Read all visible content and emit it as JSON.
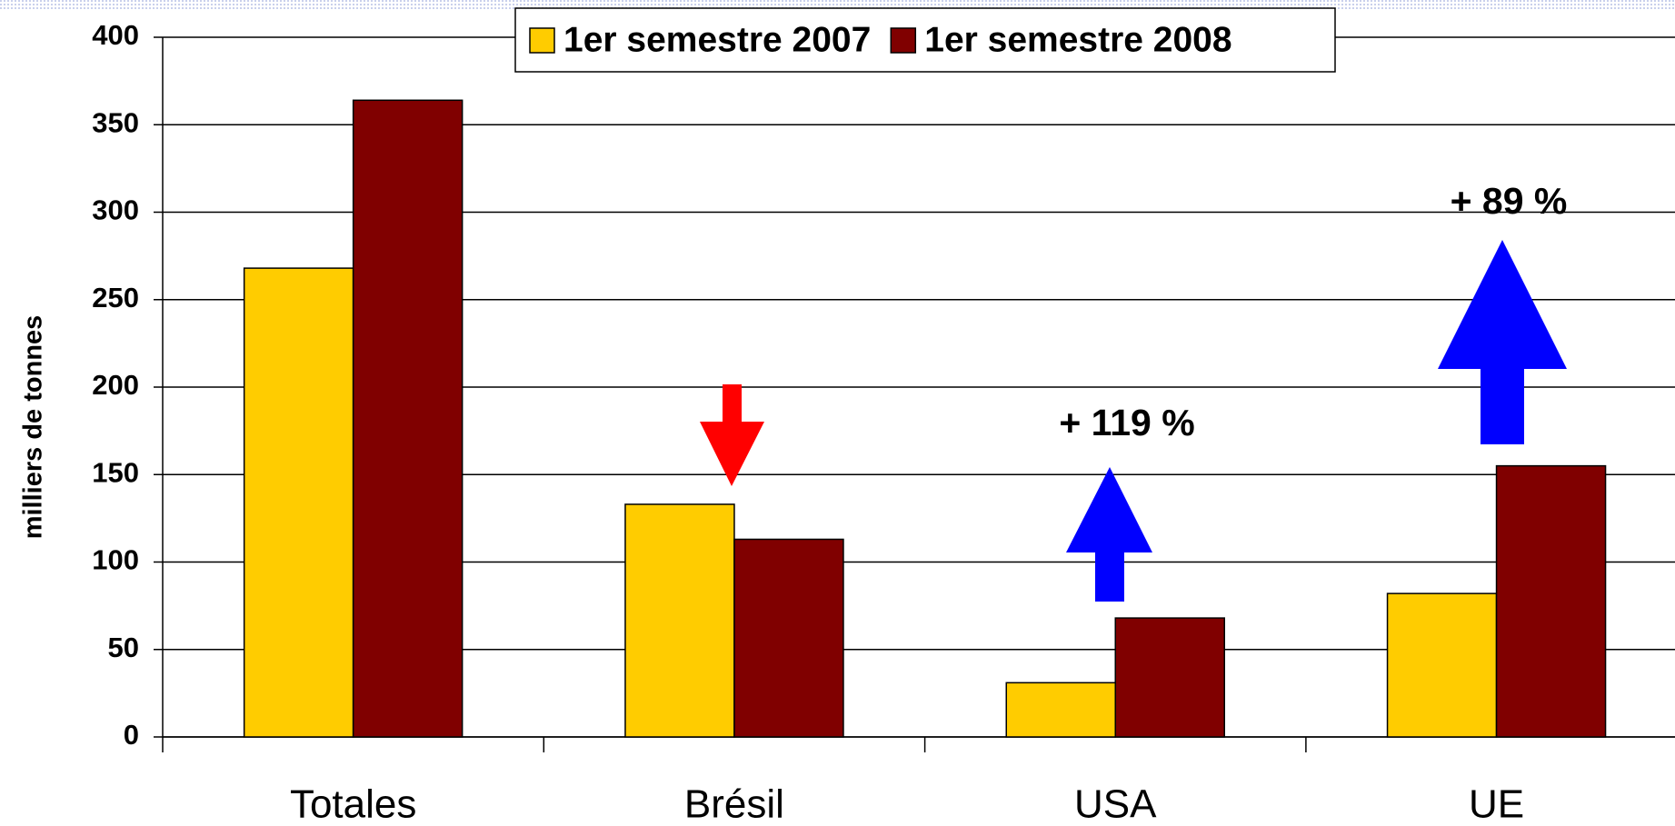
{
  "chart_data": {
    "type": "bar",
    "y_label": "milliers de tonnes",
    "categories": [
      "Totales",
      "Brésil",
      "USA",
      "UE"
    ],
    "series": [
      {
        "name": "1er semestre 2007",
        "color": "#ffcc00",
        "values": [
          268,
          133,
          31,
          82
        ]
      },
      {
        "name": "1er semestre 2008",
        "color": "#800000",
        "values": [
          364,
          113,
          68,
          155
        ]
      }
    ],
    "ylim": [
      0,
      400
    ],
    "yticks": [
      0,
      50,
      100,
      150,
      200,
      250,
      300,
      350,
      400
    ],
    "grid": true,
    "legend": "top",
    "annotations": [
      "+ 119 %",
      "+ 89 %"
    ]
  }
}
